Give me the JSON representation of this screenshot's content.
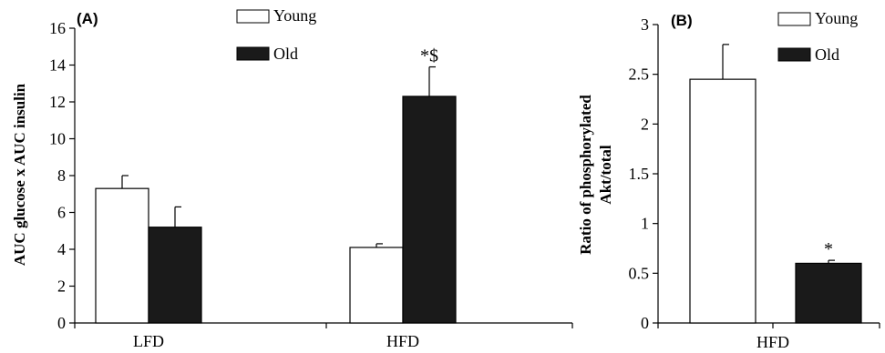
{
  "chart_data": [
    {
      "type": "bar",
      "panel_label": "(A)",
      "ylabel": "AUC glucose x AUC insulin",
      "categories": [
        "LFD",
        "HFD"
      ],
      "ylim": [
        0,
        16
      ],
      "yticks": [
        0,
        2,
        4,
        6,
        8,
        10,
        12,
        14,
        16
      ],
      "series": [
        {
          "name": "Young",
          "values": [
            7.3,
            4.1
          ],
          "errors": [
            0.7,
            0.2
          ],
          "color": "#ffffff"
        },
        {
          "name": "Old",
          "values": [
            5.2,
            12.3
          ],
          "errors": [
            1.1,
            1.6
          ],
          "color": "#1a1a1a"
        }
      ],
      "annotations": [
        {
          "series": "Old",
          "category": "HFD",
          "text": "*$"
        }
      ],
      "legend": "top-center",
      "grid": false
    },
    {
      "type": "bar",
      "panel_label": "(B)",
      "ylabel": "Ratio of phosphorylated Akt/total",
      "categories": [
        "HFD"
      ],
      "ylim": [
        0,
        3
      ],
      "yticks": [
        "0",
        "0.5",
        "1",
        "1.5",
        "2",
        "2.5",
        "3"
      ],
      "series": [
        {
          "name": "Young",
          "values": [
            2.45
          ],
          "errors": [
            0.35
          ],
          "color": "#ffffff"
        },
        {
          "name": "Old",
          "values": [
            0.6
          ],
          "errors": [
            0.03
          ],
          "color": "#1a1a1a"
        }
      ],
      "annotations": [
        {
          "series": "Old",
          "category": "HFD",
          "text": "*"
        }
      ],
      "legend": "top-right",
      "grid": false
    }
  ]
}
